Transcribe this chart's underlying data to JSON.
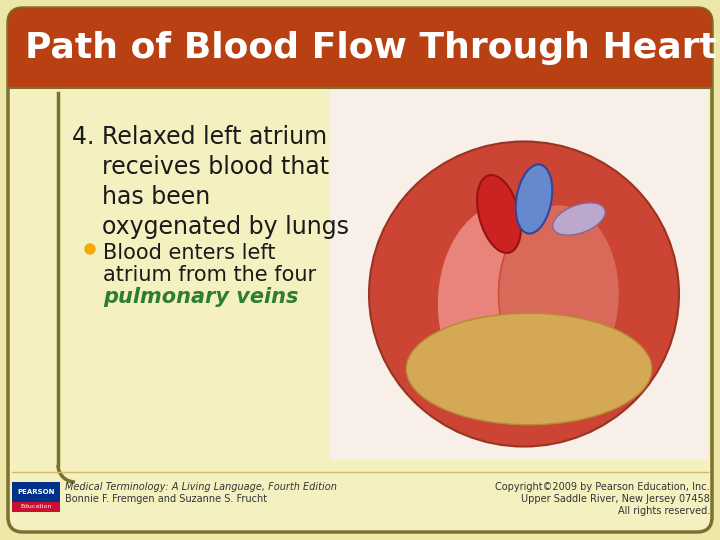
{
  "title": "Path of Blood Flow Through Heart",
  "title_bg_color": "#B84012",
  "title_text_color": "#FFFFFF",
  "bg_color": "#F5F0C0",
  "outer_bg_color": "#EDE8A8",
  "main_text_1": "4. Relaxed left atrium",
  "main_text_2": "    receives blood that",
  "main_text_3": "    has been",
  "main_text_4": "    oxygenated by lungs",
  "bullet_text_1": "Blood enters left",
  "bullet_text_2": "atrium from the four",
  "bullet_text_green": "pulmonary veins",
  "bullet_color": "#F5A800",
  "main_text_color": "#1A1A1A",
  "green_text_color": "#2E7D32",
  "footer_left_line1": "Medical Terminology: A Living Language, Fourth Edition",
  "footer_left_line2": "Bonnie F. Fremgen and Suzanne S. Frucht",
  "footer_right_line1": "Copyright©2009 by Pearson Education, Inc.",
  "footer_right_line2": "Upper Saddle River, New Jersey 07458",
  "footer_right_line3": "All rights reserved.",
  "footer_text_color": "#333333",
  "pearson_box_color1": "#003087",
  "pearson_box_color2": "#C8102E",
  "sidebar_color": "#7A7030",
  "title_font_size": 26,
  "main_font_size": 17,
  "bullet_font_size": 15,
  "footer_font_size": 7
}
